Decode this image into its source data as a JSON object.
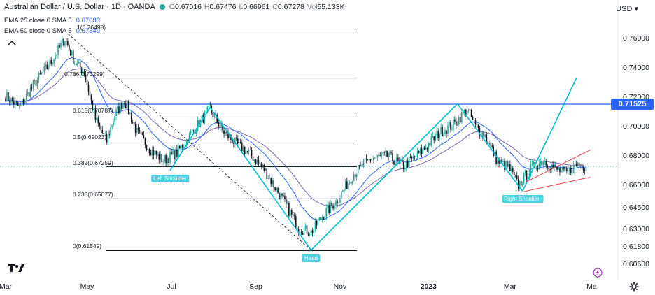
{
  "header": {
    "title": "Australian Dollar / U.S. Dollar · 1D · OANDA",
    "open_label": "O",
    "open": "0.67016",
    "high_label": "H",
    "high": "0.67476",
    "low_label": "L",
    "low": "0.66961",
    "close_label": "C",
    "close": "0.67278",
    "vol_label": "Vol",
    "vol": "55.133K",
    "currency": "USD",
    "status_color": "#26a69a"
  },
  "indicators": [
    {
      "label": "EMA 25 close 0 SMA 5",
      "value": "0.67083"
    },
    {
      "label": "EMA 50 close 0 SMA 5",
      "value": "0.67349"
    }
  ],
  "price_label": "0.71525",
  "colors": {
    "up": "#26a69a",
    "down": "#131722",
    "ema25": "#2962ff",
    "ema50": "#5b3fa0",
    "zigzag": "#00bcd4",
    "hline": "#2962ff",
    "channel": "#f23645",
    "fib": "#131722"
  },
  "chart_data": {
    "type": "candlestick",
    "title": "Australian Dollar / U.S. Dollar · 1D · OANDA",
    "y_ticks": [
      "0.76000",
      "0.74000",
      "0.72000",
      "0.70000",
      "0.68000",
      "0.66000",
      "0.64500",
      "0.63000",
      "0.61800",
      "0.60600"
    ],
    "ylim": [
      0.606,
      0.768
    ],
    "x_ticks": [
      {
        "label": "Mar",
        "t": 0
      },
      {
        "label": "May",
        "t": 59
      },
      {
        "label": "Jul",
        "t": 120
      },
      {
        "label": "Sep",
        "t": 181
      },
      {
        "label": "Nov",
        "t": 242
      },
      {
        "label": "2023",
        "t": 306
      },
      {
        "label": "Mar",
        "t": 365
      },
      {
        "label": "Ma",
        "t": 424
      }
    ],
    "fib_levels": [
      {
        "ratio": "1",
        "value": 0.76498,
        "label": "1(0.76498)"
      },
      {
        "ratio": "0.786",
        "value": 0.73299,
        "label": "0.786(0.73299)"
      },
      {
        "ratio": "0.618",
        "value": 0.70787,
        "label": "0.618(0.70787)"
      },
      {
        "ratio": "0.5",
        "value": 0.69023,
        "label": "0.5(0.69023)"
      },
      {
        "ratio": "0.382",
        "value": 0.67259,
        "label": "0.382(0.67259)"
      },
      {
        "ratio": "0.236",
        "value": 0.65077,
        "label": "0.236(0.65077)"
      },
      {
        "ratio": "0",
        "value": 0.61549,
        "label": "0(0.61549)"
      }
    ],
    "horizontal_line": 0.71525,
    "last_price": 0.67278,
    "anchors": [
      {
        "t": 0,
        "p": 0.721
      },
      {
        "t": 10,
        "p": 0.713
      },
      {
        "t": 20,
        "p": 0.728
      },
      {
        "t": 33,
        "p": 0.744
      },
      {
        "t": 43,
        "p": 0.76
      },
      {
        "t": 50,
        "p": 0.744
      },
      {
        "t": 57,
        "p": 0.737
      },
      {
        "t": 65,
        "p": 0.705
      },
      {
        "t": 73,
        "p": 0.69
      },
      {
        "t": 79,
        "p": 0.708
      },
      {
        "t": 86,
        "p": 0.718
      },
      {
        "t": 95,
        "p": 0.696
      },
      {
        "t": 105,
        "p": 0.684
      },
      {
        "t": 114,
        "p": 0.677
      },
      {
        "t": 124,
        "p": 0.682
      },
      {
        "t": 138,
        "p": 0.7
      },
      {
        "t": 148,
        "p": 0.712
      },
      {
        "t": 157,
        "p": 0.697
      },
      {
        "t": 167,
        "p": 0.688
      },
      {
        "t": 176,
        "p": 0.682
      },
      {
        "t": 187,
        "p": 0.671
      },
      {
        "t": 203,
        "p": 0.646
      },
      {
        "t": 212,
        "p": 0.631
      },
      {
        "t": 221,
        "p": 0.628
      },
      {
        "t": 230,
        "p": 0.64
      },
      {
        "t": 240,
        "p": 0.65
      },
      {
        "t": 252,
        "p": 0.668
      },
      {
        "t": 264,
        "p": 0.678
      },
      {
        "t": 276,
        "p": 0.68
      },
      {
        "t": 288,
        "p": 0.673
      },
      {
        "t": 300,
        "p": 0.682
      },
      {
        "t": 314,
        "p": 0.696
      },
      {
        "t": 325,
        "p": 0.702
      },
      {
        "t": 334,
        "p": 0.712
      },
      {
        "t": 340,
        "p": 0.7
      },
      {
        "t": 347,
        "p": 0.694
      },
      {
        "t": 356,
        "p": 0.676
      },
      {
        "t": 364,
        "p": 0.672
      },
      {
        "t": 371,
        "p": 0.66
      },
      {
        "t": 380,
        "p": 0.671
      },
      {
        "t": 389,
        "p": 0.677
      },
      {
        "t": 398,
        "p": 0.671
      },
      {
        "t": 406,
        "p": 0.668
      },
      {
        "t": 414,
        "p": 0.675
      },
      {
        "t": 420,
        "p": 0.6728
      }
    ],
    "pattern_points": [
      {
        "label": "Left Shoulder",
        "t": 119,
        "p": 0.67
      },
      {
        "label": "",
        "t": 148,
        "p": 0.713
      },
      {
        "label": "Head",
        "t": 221,
        "p": 0.6158
      },
      {
        "label": "",
        "t": 327,
        "p": 0.7155
      },
      {
        "label": "Right Shoulder",
        "t": 374,
        "p": 0.656
      }
    ],
    "projection": {
      "from": {
        "t": 374,
        "p": 0.656
      },
      "to": {
        "t": 413,
        "p": 0.733
      }
    },
    "diagonal": {
      "from": {
        "t": 43,
        "p": 0.765
      },
      "to": {
        "t": 221,
        "p": 0.6158
      }
    },
    "channel": {
      "upper": [
        {
          "t": 376,
          "p": 0.662
        },
        {
          "t": 423,
          "p": 0.684
        }
      ],
      "lower": [
        {
          "t": 374,
          "p": 0.6555
        },
        {
          "t": 423,
          "p": 0.6655
        }
      ]
    }
  }
}
